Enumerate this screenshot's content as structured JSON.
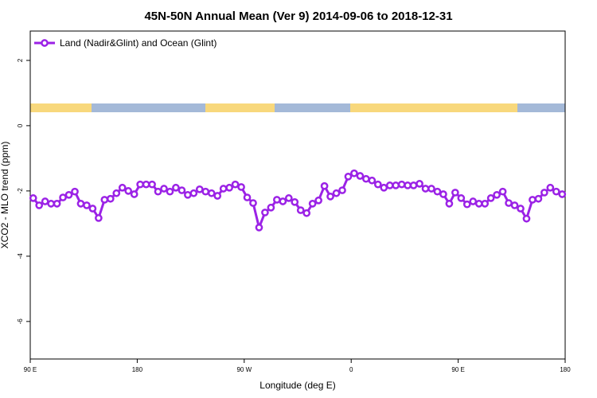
{
  "chart_data": {
    "type": "line",
    "title": "45N-50N Annual Mean (Ver 9)   2014-09-06 to 2018-12-31",
    "x_label": "Longitude (deg E)",
    "y_label": "XCO2 - MLO trend (ppm)",
    "xlim": [
      90,
      540
    ],
    "ylim": [
      -7.15,
      2.9
    ],
    "xticks": [
      {
        "value": 90,
        "label": "90 E"
      },
      180,
      {
        "value": 270,
        "label": "90 W"
      },
      {
        "value": 360,
        "label": "0"
      },
      {
        "value": 450,
        "label": "90 E"
      },
      {
        "value": 540,
        "label": "180"
      }
    ],
    "yticks": [
      2,
      0,
      -2,
      -4,
      -6
    ],
    "legend": "top-left",
    "x": [
      92.5,
      97.5,
      102.5,
      107.5,
      112.5,
      117.5,
      122.5,
      127.5,
      132.5,
      137.5,
      142.5,
      147.5,
      152.5,
      157.5,
      162.5,
      167.5,
      172.5,
      177.5,
      182.5,
      187.5,
      192.5,
      197.5,
      202.5,
      207.5,
      212.5,
      217.5,
      222.5,
      227.5,
      232.5,
      237.5,
      242.5,
      247.5,
      252.5,
      257.5,
      262.5,
      267.5,
      272.5,
      277.5,
      282.5,
      287.5,
      292.5,
      297.5,
      302.5,
      307.5,
      312.5,
      317.5,
      322.5,
      327.5,
      332.5,
      337.5,
      342.5,
      347.5,
      352.5,
      357.5,
      362.5,
      367.5,
      372.5,
      377.5,
      382.5,
      387.5,
      392.5,
      397.5,
      402.5,
      407.5,
      412.5,
      417.5,
      422.5,
      427.5,
      432.5,
      437.5,
      442.5,
      447.5,
      452.5,
      457.5,
      462.5,
      467.5,
      472.5,
      477.5,
      482.5,
      487.5,
      492.5,
      497.5,
      502.5,
      507.5,
      512.5,
      517.5,
      522.5,
      527.5,
      532.5,
      537.5
    ],
    "series": [
      {
        "name": "Land (Nadir&Glint) and Ocean (Glint)",
        "color": "#9b22e6",
        "values": [
          -2.22,
          -2.44,
          -2.32,
          -2.39,
          -2.39,
          -2.2,
          -2.12,
          -2.02,
          -2.39,
          -2.44,
          -2.54,
          -2.83,
          -2.27,
          -2.24,
          -2.07,
          -1.9,
          -2.0,
          -2.1,
          -1.8,
          -1.8,
          -1.8,
          -2.02,
          -1.93,
          -2.02,
          -1.9,
          -1.98,
          -2.12,
          -2.07,
          -1.95,
          -2.02,
          -2.07,
          -2.15,
          -1.93,
          -1.9,
          -1.8,
          -1.88,
          -2.2,
          -2.37,
          -3.12,
          -2.66,
          -2.51,
          -2.27,
          -2.32,
          -2.22,
          -2.34,
          -2.59,
          -2.68,
          -2.39,
          -2.29,
          -1.85,
          -2.17,
          -2.07,
          -1.98,
          -1.56,
          -1.46,
          -1.54,
          -1.63,
          -1.68,
          -1.8,
          -1.9,
          -1.83,
          -1.83,
          -1.8,
          -1.83,
          -1.83,
          -1.78,
          -1.93,
          -1.93,
          -2.02,
          -2.1,
          -2.39,
          -2.05,
          -2.22,
          -2.41,
          -2.32,
          -2.39,
          -2.39,
          -2.22,
          -2.12,
          -2.02,
          -2.37,
          -2.44,
          -2.54,
          -2.85,
          -2.27,
          -2.24,
          -2.05,
          -1.9,
          -2.02,
          -2.1
        ]
      }
    ]
  }
}
